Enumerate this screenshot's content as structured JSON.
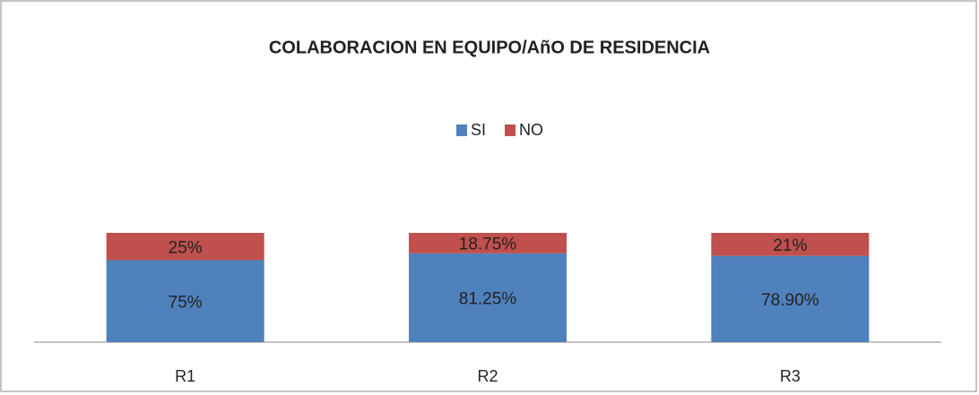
{
  "chart_data": {
    "type": "stacked_bar",
    "title": "COLABORACION EN EQUIPO/AñO DE RESIDENCIA",
    "categories": [
      "R1",
      "R2",
      "R3"
    ],
    "series": [
      {
        "name": "SI",
        "color": "#4f81bd",
        "values": [
          75,
          81.25,
          78.9
        ],
        "value_labels": [
          "75%",
          "81.25%",
          "78.90%"
        ]
      },
      {
        "name": "NO",
        "color": "#c0504d",
        "values": [
          25,
          18.75,
          21
        ],
        "value_labels": [
          "25%",
          "18.75%",
          "21%"
        ]
      }
    ],
    "legend": "top"
  }
}
